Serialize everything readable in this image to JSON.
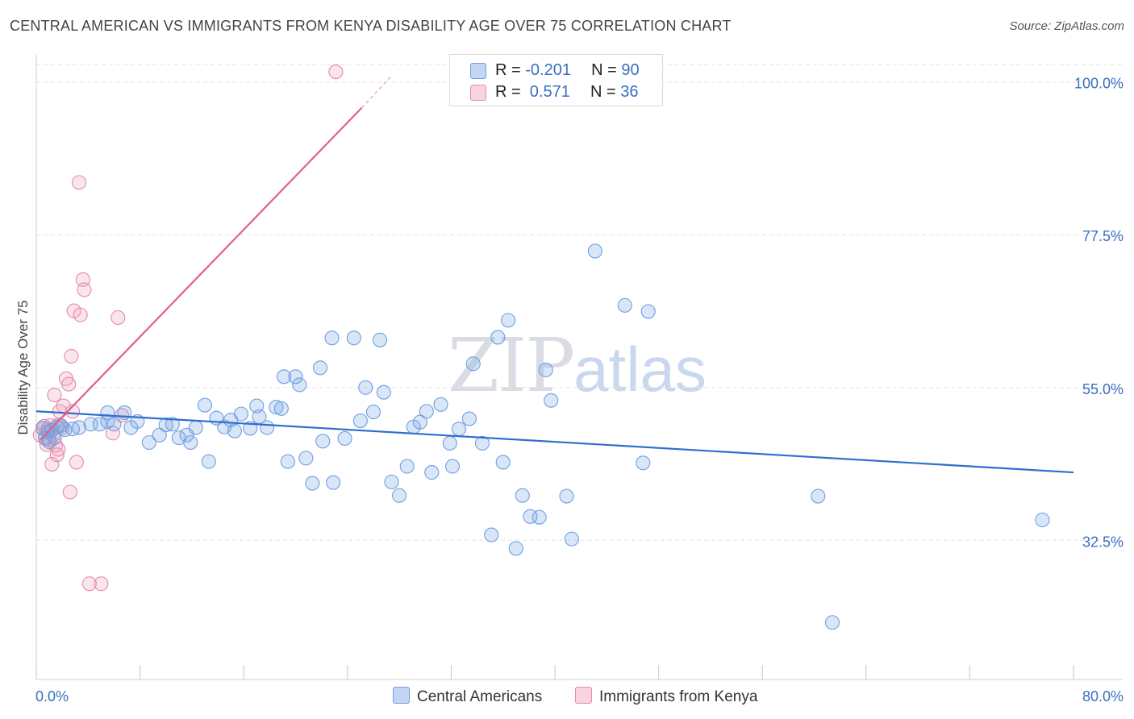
{
  "title": "CENTRAL AMERICAN VS IMMIGRANTS FROM KENYA DISABILITY AGE OVER 75 CORRELATION CHART",
  "source": "Source: ZipAtlas.com",
  "watermark": {
    "zip": "ZIP",
    "atlas": "atlas"
  },
  "colors": {
    "blue": "#6f9fe0",
    "blue_fill": "rgba(120,165,230,0.28)",
    "blue_line": "#2f6fcc",
    "pink": "#e58aa8",
    "pink_fill": "rgba(240,160,190,0.28)",
    "pink_line": "#e0608a",
    "axis_text": "#3a6fc4",
    "grid": "#e3e3e3"
  },
  "legend_top": [
    {
      "label": "R = ",
      "r": "-0.201",
      "n_label": "N = ",
      "n": "90",
      "series": "blue"
    },
    {
      "label": "R = ",
      "r": " 0.571",
      "n_label": "N = ",
      "n": "36",
      "series": "pink"
    }
  ],
  "legend_bottom": [
    {
      "label": "Central Americans",
      "series": "blue"
    },
    {
      "label": "Immigrants from Kenya",
      "series": "pink"
    }
  ],
  "chart_data": {
    "type": "scatter",
    "title": "CENTRAL AMERICAN VS IMMIGRANTS FROM KENYA DISABILITY AGE OVER 75 CORRELATION CHART",
    "xlabel": "",
    "ylabel": "Disability Age Over 75",
    "xlim": [
      0,
      80
    ],
    "ylim": [
      12,
      104
    ],
    "x_tick_labels": [
      {
        "value": 0,
        "label": "0.0%"
      },
      {
        "value": 80,
        "label": "80.0%"
      }
    ],
    "x_minor_ticks": [
      0,
      8,
      16,
      24,
      32,
      40,
      48,
      56,
      64,
      72,
      80
    ],
    "y_ticks": [
      {
        "value": 100,
        "label": "100.0%"
      },
      {
        "value": 77.5,
        "label": "77.5%"
      },
      {
        "value": 55,
        "label": "55.0%"
      },
      {
        "value": 32.5,
        "label": "32.5%"
      }
    ],
    "grid": true,
    "series": [
      {
        "name": "Central Americans",
        "color_key": "blue",
        "r": -0.201,
        "n": 90,
        "trend": {
          "x": [
            0,
            80
          ],
          "y": [
            51.5,
            42.5
          ]
        },
        "points": [
          [
            0.5,
            49
          ],
          [
            0.7,
            47.5
          ],
          [
            0.9,
            48.5
          ],
          [
            1.0,
            47
          ],
          [
            1.2,
            48.8
          ],
          [
            1.4,
            47.6
          ],
          [
            1.6,
            49.2
          ],
          [
            1.9,
            49.4
          ],
          [
            2.2,
            48.8
          ],
          [
            2.8,
            48.9
          ],
          [
            3.3,
            49.1
          ],
          [
            4.2,
            49.6
          ],
          [
            4.9,
            49.6
          ],
          [
            5.5,
            50
          ],
          [
            5.5,
            51.3
          ],
          [
            6.0,
            49.6
          ],
          [
            6.8,
            51.3
          ],
          [
            7.3,
            49.1
          ],
          [
            7.8,
            50.0
          ],
          [
            8.7,
            46.9
          ],
          [
            9.5,
            48
          ],
          [
            10.0,
            49.5
          ],
          [
            10.5,
            49.6
          ],
          [
            11.0,
            47.6
          ],
          [
            11.6,
            48.0
          ],
          [
            11.9,
            46.9
          ],
          [
            12.3,
            49.1
          ],
          [
            13.0,
            52.4
          ],
          [
            13.3,
            44.1
          ],
          [
            13.9,
            50.5
          ],
          [
            14.5,
            49.2
          ],
          [
            15.0,
            50.2
          ],
          [
            15.3,
            48.6
          ],
          [
            15.8,
            51.1
          ],
          [
            16.5,
            49.0
          ],
          [
            17.0,
            52.3
          ],
          [
            17.2,
            50.7
          ],
          [
            17.8,
            49.1
          ],
          [
            18.5,
            52.1
          ],
          [
            18.9,
            51.9
          ],
          [
            19.1,
            56.6
          ],
          [
            19.4,
            44.1
          ],
          [
            20.0,
            56.6
          ],
          [
            20.3,
            55.4
          ],
          [
            20.8,
            44.6
          ],
          [
            21.3,
            40.9
          ],
          [
            21.9,
            57.9
          ],
          [
            22.1,
            47.1
          ],
          [
            22.8,
            62.3
          ],
          [
            22.9,
            41.0
          ],
          [
            23.8,
            47.5
          ],
          [
            24.5,
            62.3
          ],
          [
            25.0,
            50.1
          ],
          [
            25.4,
            55.0
          ],
          [
            26.0,
            51.4
          ],
          [
            26.5,
            62.0
          ],
          [
            26.8,
            54.3
          ],
          [
            27.4,
            41.1
          ],
          [
            28.0,
            39.1
          ],
          [
            28.6,
            43.4
          ],
          [
            29.1,
            49.2
          ],
          [
            29.6,
            49.9
          ],
          [
            30.1,
            51.5
          ],
          [
            30.5,
            42.5
          ],
          [
            31.2,
            52.5
          ],
          [
            31.9,
            46.8
          ],
          [
            32.1,
            43.4
          ],
          [
            32.6,
            48.9
          ],
          [
            33.4,
            50.4
          ],
          [
            33.7,
            58.5
          ],
          [
            34.4,
            46.8
          ],
          [
            35.1,
            33.3
          ],
          [
            35.6,
            62.4
          ],
          [
            36.0,
            44.0
          ],
          [
            36.4,
            64.9
          ],
          [
            37.0,
            31.3
          ],
          [
            37.5,
            39.1
          ],
          [
            38.1,
            36.0
          ],
          [
            38.8,
            35.9
          ],
          [
            39.3,
            57.6
          ],
          [
            39.7,
            53.1
          ],
          [
            40.9,
            39.0
          ],
          [
            41.3,
            32.7
          ],
          [
            43.1,
            75.1
          ],
          [
            45.4,
            67.1
          ],
          [
            46.8,
            43.9
          ],
          [
            47.2,
            66.2
          ],
          [
            60.3,
            39.0
          ],
          [
            61.4,
            20.4
          ],
          [
            77.6,
            35.5
          ]
        ]
      },
      {
        "name": "Immigrants from Kenya",
        "color_key": "pink",
        "r": 0.571,
        "n": 36,
        "trend": {
          "x": [
            0.3,
            25.1
          ],
          "y": [
            47.3,
            96.2
          ]
        },
        "trend_dashed": {
          "x": [
            25.1,
            27.3
          ],
          "y": [
            96.2,
            100.7
          ]
        },
        "points": [
          [
            0.3,
            48.0
          ],
          [
            0.5,
            49.0
          ],
          [
            0.6,
            49.3
          ],
          [
            0.7,
            47.7
          ],
          [
            0.8,
            46.6
          ],
          [
            0.9,
            48.9
          ],
          [
            1.0,
            47.3
          ],
          [
            1.1,
            49.4
          ],
          [
            1.2,
            48.7
          ],
          [
            1.2,
            43.7
          ],
          [
            1.3,
            48.0
          ],
          [
            1.4,
            53.9
          ],
          [
            1.5,
            46.5
          ],
          [
            1.6,
            45.1
          ],
          [
            1.7,
            45.9
          ],
          [
            1.8,
            51.5
          ],
          [
            2.0,
            49.1
          ],
          [
            2.1,
            52.3
          ],
          [
            2.3,
            56.3
          ],
          [
            2.5,
            55.5
          ],
          [
            2.6,
            39.6
          ],
          [
            2.7,
            59.6
          ],
          [
            2.8,
            51.5
          ],
          [
            2.9,
            66.3
          ],
          [
            3.1,
            44.0
          ],
          [
            3.3,
            85.2
          ],
          [
            3.4,
            65.7
          ],
          [
            3.6,
            70.9
          ],
          [
            3.7,
            69.4
          ],
          [
            4.1,
            26.1
          ],
          [
            5.0,
            26.1
          ],
          [
            5.9,
            48.3
          ],
          [
            6.3,
            65.3
          ],
          [
            6.6,
            50.9
          ],
          [
            23.1,
            101.5
          ],
          [
            1.7,
            49.5
          ]
        ]
      }
    ]
  }
}
